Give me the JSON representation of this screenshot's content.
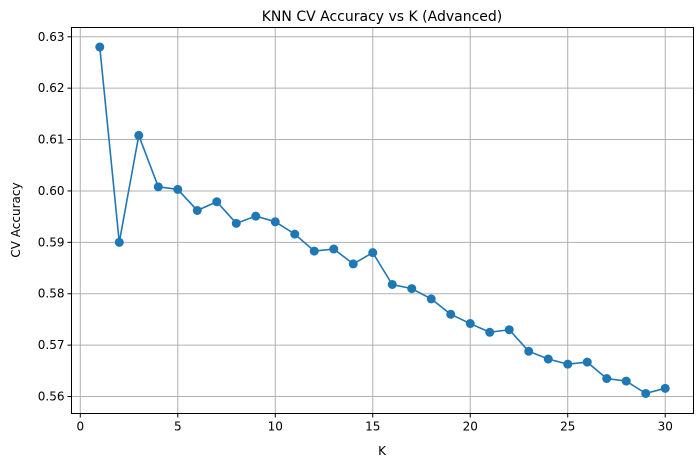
{
  "chart_data": {
    "type": "line",
    "title": "KNN CV Accuracy vs K (Advanced)",
    "xlabel": "K",
    "ylabel": "CV Accuracy",
    "xlim": [
      -0.45,
      31.45
    ],
    "ylim": [
      0.5567,
      0.6318
    ],
    "xticks": [
      0,
      5,
      10,
      15,
      20,
      25,
      30
    ],
    "yticks": [
      0.56,
      0.57,
      0.58,
      0.59,
      0.6,
      0.61,
      0.62,
      0.63
    ],
    "ytick_labels": [
      "0.56",
      "0.57",
      "0.58",
      "0.59",
      "0.60",
      "0.61",
      "0.62",
      "0.63"
    ],
    "grid": true,
    "color": "#1f77b4",
    "marker": "circle",
    "series": [
      {
        "x": [
          1,
          2,
          3,
          4,
          5,
          6,
          7,
          8,
          9,
          10,
          11,
          12,
          13,
          14,
          15,
          16,
          17,
          18,
          19,
          20,
          21,
          22,
          23,
          24,
          25,
          26,
          27,
          28,
          29,
          30
        ],
        "y": [
          0.628,
          0.59,
          0.6108,
          0.6008,
          0.6003,
          0.5962,
          0.5979,
          0.5937,
          0.5951,
          0.594,
          0.5916,
          0.5883,
          0.5887,
          0.5858,
          0.588,
          0.5818,
          0.581,
          0.579,
          0.576,
          0.5742,
          0.5725,
          0.573,
          0.5688,
          0.5673,
          0.5663,
          0.5667,
          0.5635,
          0.563,
          0.5606,
          0.5616
        ]
      }
    ]
  }
}
